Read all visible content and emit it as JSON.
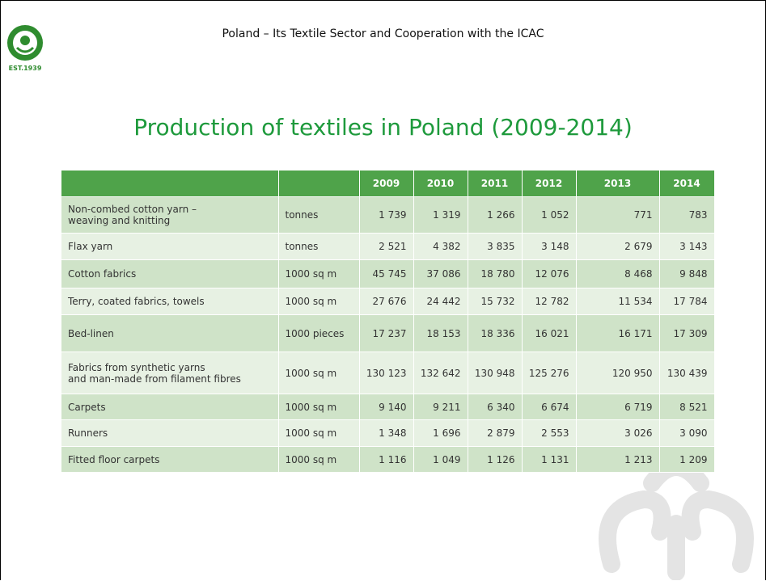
{
  "header": {
    "title": "Poland – Its Textile Sector and Cooperation with the ICAC",
    "logo_text": "EST.1939"
  },
  "title": "Production of textiles in Poland (2009-2014)",
  "table": {
    "columns": [
      "",
      "",
      "2009",
      "2010",
      "2011",
      "2012",
      "2013",
      "2014"
    ],
    "rows": [
      [
        "Non-combed cotton yarn –\nweaving and knitting",
        "tonnes",
        "1 739",
        "1 319",
        "1 266",
        "1 052",
        "771",
        "783"
      ],
      [
        "Flax yarn",
        "tonnes",
        "2 521",
        "4 382",
        "3 835",
        "3 148",
        "2 679",
        "3 143"
      ],
      [
        "Cotton fabrics",
        "1000 sq m",
        "45 745",
        "37 086",
        "18 780",
        "12 076",
        "8 468",
        "9 848"
      ],
      [
        "Terry, coated fabrics, towels",
        "1000 sq m",
        "27 676",
        "24 442",
        "15 732",
        "12 782",
        "11 534",
        "17 784"
      ],
      [
        "Bed-linen",
        "1000 pieces",
        "17 237",
        "18 153",
        "18 336",
        "16 021",
        "16 171",
        "17 309"
      ],
      [
        "Fabrics from synthetic yarns\nand man-made from filament fibres",
        "1000 sq m",
        "130 123",
        "132 642",
        "130 948",
        "125 276",
        "120 950",
        "130 439"
      ],
      [
        "Carpets",
        "1000 sq m",
        "9 140",
        "9 211",
        "6 340",
        "6 674",
        "6 719",
        "8 521"
      ],
      [
        "Runners",
        "1000 sq m",
        "1 348",
        "1 696",
        "2 879",
        "2 553",
        "3 026",
        "3 090"
      ],
      [
        "Fitted floor carpets",
        "1000 sq m",
        "1 116",
        "1 049",
        "1 126",
        "1 131",
        "1 213",
        "1 209"
      ]
    ]
  }
}
